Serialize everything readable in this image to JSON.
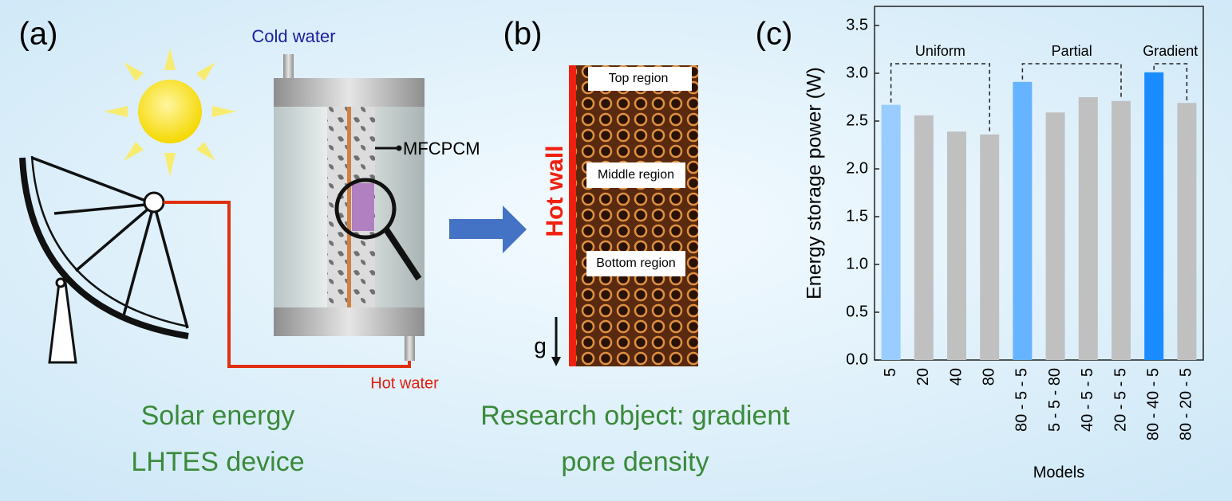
{
  "panel_a": {
    "label": "(a)",
    "cold_water": "Cold water",
    "mfcpcm": "MFCPCM",
    "hot_water": "Hot water",
    "caption": [
      "Solar energy",
      "LHTES device"
    ]
  },
  "panel_b": {
    "label": "(b)",
    "regions": [
      "Top region",
      "Middle region",
      "Bottom region"
    ],
    "hot_wall": "Hot wall",
    "gravity": "g",
    "caption": [
      "Research object: gradient",
      "pore density"
    ]
  },
  "panel_c": {
    "label": "(c)"
  },
  "chart_data": {
    "type": "bar",
    "categories": [
      "5",
      "20",
      "40",
      "80",
      "80 - 5 - 5",
      "5 - 5 - 80",
      "40 - 5 - 5",
      "20 - 5 - 5",
      "80 - 40 - 5",
      "80 - 20 - 5"
    ],
    "values": [
      2.67,
      2.56,
      2.39,
      2.36,
      2.91,
      2.59,
      2.75,
      2.71,
      3.01,
      2.69
    ],
    "colors": [
      "#99ccff",
      "#c0c0c0",
      "#c0c0c0",
      "#c0c0c0",
      "#66b3ff",
      "#c0c0c0",
      "#c0c0c0",
      "#c0c0c0",
      "#1a8cff",
      "#c0c0c0"
    ],
    "ylim": [
      0,
      3.7
    ],
    "yticks": [
      {
        "value": 0,
        "label": "0.0"
      },
      0.5,
      {
        "value": 1,
        "label": "1.0"
      },
      1.5,
      {
        "value": 2,
        "label": "2.0"
      },
      2.5,
      {
        "value": 3,
        "label": "3.0"
      },
      3.5
    ],
    "xlabel": "Models",
    "ylabel": "Energy storage power (W)",
    "annotations": [
      "Uniform",
      "Partial",
      "Gradient"
    ]
  }
}
